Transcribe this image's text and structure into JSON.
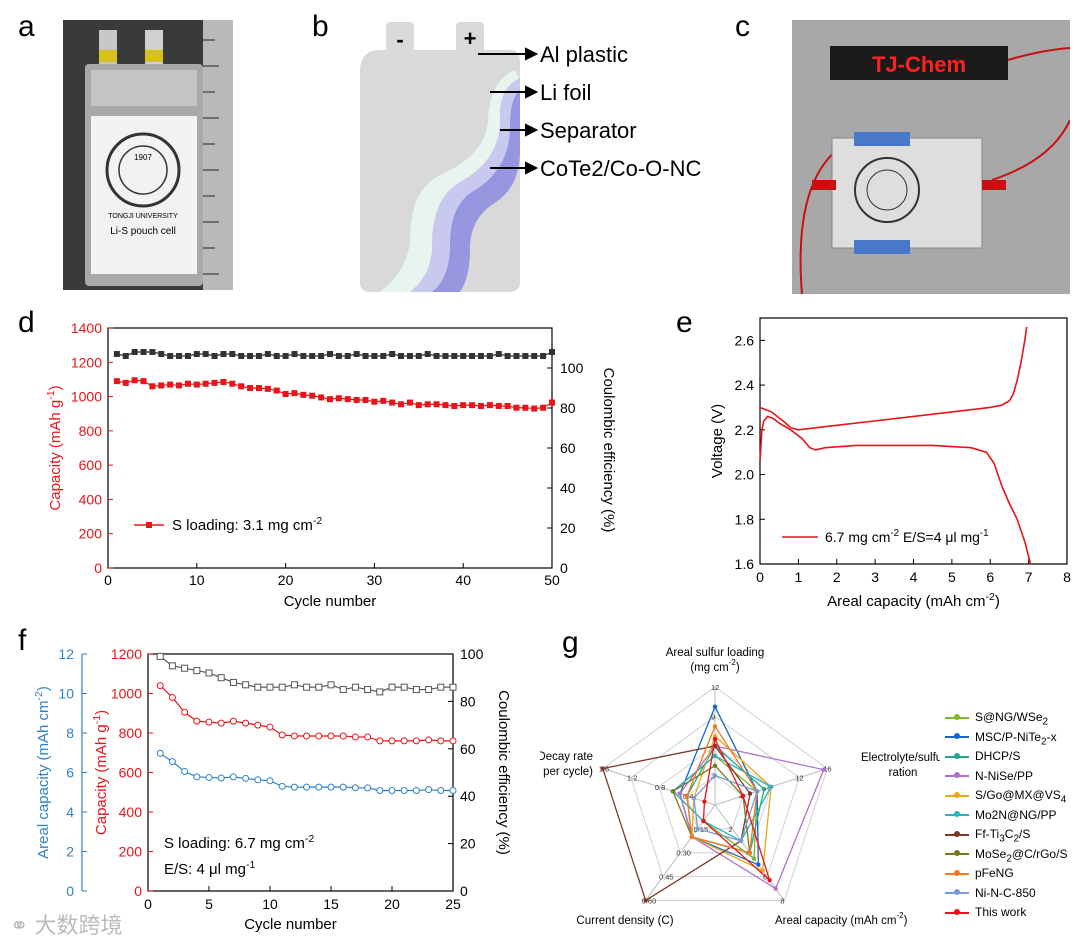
{
  "labels": {
    "a": "a",
    "b": "b",
    "c": "c",
    "d": "d",
    "e": "e",
    "f": "f",
    "g": "g"
  },
  "photo_a": {
    "seal_year": "1907",
    "seal_name": "TONGJI UNIVERSITY",
    "cell_label": "Li-S pouch cell"
  },
  "photo_c": {
    "led_text": "TJ-Chem"
  },
  "schematic_b": {
    "minus": "-",
    "plus": "+",
    "labels": [
      "Al plastic",
      "Li foil",
      "Separator",
      "CoTe2/Co-O-NC"
    ],
    "colors": {
      "body": "#d9d9d9",
      "li_foil": "#e8f4ee",
      "separator": "#c9c9f0",
      "cathode": "#8f8fe0"
    }
  },
  "watermark": "大数跨境",
  "chart_data": [
    {
      "id": "d",
      "type": "scatter",
      "xlabel": "Cycle number",
      "ylabel": "Capacity (mAh g-1)",
      "y2label": "Coulombic efficiency (%)",
      "xlim": [
        0,
        50
      ],
      "ylim": [
        0,
        1400
      ],
      "y2lim": [
        0,
        120
      ],
      "xticks": [
        0,
        10,
        20,
        30,
        40,
        50
      ],
      "yticks": [
        0,
        200,
        400,
        600,
        800,
        1000,
        1200,
        1400
      ],
      "y2ticks": [
        0,
        20,
        40,
        60,
        80,
        100
      ],
      "legend": "S loading: 3.1 mg cm-2",
      "series": [
        {
          "name": "Capacity",
          "axis": "left",
          "color": "#e8141a",
          "x": [
            1,
            2,
            3,
            4,
            5,
            6,
            7,
            8,
            9,
            10,
            11,
            12,
            13,
            14,
            15,
            16,
            17,
            18,
            19,
            20,
            21,
            22,
            23,
            24,
            25,
            26,
            27,
            28,
            29,
            30,
            31,
            32,
            33,
            34,
            35,
            36,
            37,
            38,
            39,
            40,
            41,
            42,
            43,
            44,
            45,
            46,
            47,
            48,
            49,
            50
          ],
          "values": [
            1090,
            1080,
            1095,
            1090,
            1060,
            1065,
            1070,
            1065,
            1075,
            1070,
            1075,
            1080,
            1085,
            1075,
            1060,
            1050,
            1050,
            1045,
            1035,
            1015,
            1020,
            1010,
            1005,
            995,
            985,
            990,
            985,
            980,
            980,
            970,
            975,
            965,
            955,
            965,
            950,
            955,
            955,
            950,
            945,
            950,
            950,
            945,
            950,
            945,
            945,
            935,
            935,
            930,
            935,
            965
          ]
        },
        {
          "name": "Coulombic efficiency",
          "axis": "right",
          "color": "#333333",
          "x": [
            1,
            2,
            3,
            4,
            5,
            6,
            7,
            8,
            9,
            10,
            11,
            12,
            13,
            14,
            15,
            16,
            17,
            18,
            19,
            20,
            21,
            22,
            23,
            24,
            25,
            26,
            27,
            28,
            29,
            30,
            31,
            32,
            33,
            34,
            35,
            36,
            37,
            38,
            39,
            40,
            41,
            42,
            43,
            44,
            45,
            46,
            47,
            48,
            49,
            50
          ],
          "values": [
            107,
            106,
            108,
            108,
            108,
            107,
            106,
            106,
            106,
            107,
            107,
            106,
            107,
            107,
            106,
            106,
            106,
            107,
            106,
            106,
            107,
            106,
            106,
            106,
            107,
            106,
            106,
            107,
            106,
            106,
            106,
            107,
            106,
            106,
            106,
            107,
            106,
            106,
            106,
            106,
            106,
            106,
            106,
            107,
            106,
            106,
            106,
            106,
            106,
            108
          ]
        }
      ]
    },
    {
      "id": "e",
      "type": "line",
      "xlabel": "Areal capacity (mAh cm-2)",
      "ylabel": "Voltage (V)",
      "xlim": [
        0,
        8
      ],
      "ylim": [
        1.6,
        2.7
      ],
      "xticks": [
        0,
        1,
        2,
        3,
        4,
        5,
        6,
        7,
        8
      ],
      "yticks": [
        1.6,
        1.8,
        2.0,
        2.2,
        2.4,
        2.6
      ],
      "legend": "6.7 mg cm-2  E/S=4 μl mg-1",
      "series": [
        {
          "name": "Discharge",
          "color": "#e8141a",
          "x": [
            0,
            0.05,
            0.1,
            0.2,
            0.35,
            0.5,
            0.8,
            1.1,
            1.3,
            1.45,
            1.7,
            2.5,
            3.5,
            4.5,
            5.5,
            5.9,
            6.1,
            6.3,
            6.5,
            6.7,
            6.9,
            7.05
          ],
          "values": [
            2.06,
            2.2,
            2.24,
            2.26,
            2.25,
            2.23,
            2.2,
            2.16,
            2.12,
            2.11,
            2.12,
            2.13,
            2.13,
            2.13,
            2.12,
            2.1,
            2.05,
            1.95,
            1.87,
            1.8,
            1.7,
            1.6
          ]
        },
        {
          "name": "Charge",
          "color": "#e8141a",
          "x": [
            0,
            0.3,
            0.6,
            0.8,
            1.0,
            2.0,
            3.0,
            4.0,
            5.0,
            6.0,
            6.3,
            6.5,
            6.6,
            6.7,
            6.8,
            6.9,
            6.95
          ],
          "values": [
            2.3,
            2.28,
            2.24,
            2.21,
            2.2,
            2.22,
            2.24,
            2.26,
            2.28,
            2.3,
            2.31,
            2.33,
            2.36,
            2.42,
            2.5,
            2.6,
            2.66
          ]
        }
      ]
    },
    {
      "id": "f",
      "type": "line",
      "xlabel": "Cycle number",
      "ylabel": "Capacity (mAh g-1)",
      "y2label": "Coulombic efficiency (%)",
      "y3label": "Areal capacity (mAh cm-2)",
      "xlim": [
        0,
        25
      ],
      "ylim": [
        0,
        1200
      ],
      "y2lim": [
        0,
        100
      ],
      "y3lim": [
        0,
        12
      ],
      "xticks": [
        0,
        5,
        10,
        15,
        20,
        25
      ],
      "yticks": [
        0,
        200,
        400,
        600,
        800,
        1000,
        1200
      ],
      "y2ticks": [
        0,
        20,
        40,
        60,
        80,
        100
      ],
      "y3ticks": [
        0,
        2,
        4,
        6,
        8,
        10,
        12
      ],
      "annotations": [
        "S loading: 6.7 mg cm-2",
        "E/S: 4 μl mg-1"
      ],
      "series": [
        {
          "name": "Capacity",
          "axis": "left",
          "color": "#e8141a",
          "x": [
            1,
            2,
            3,
            4,
            5,
            6,
            7,
            8,
            9,
            10,
            11,
            12,
            13,
            14,
            15,
            16,
            17,
            18,
            19,
            20,
            21,
            22,
            23,
            24,
            25
          ],
          "values": [
            1040,
            980,
            905,
            860,
            855,
            850,
            860,
            850,
            840,
            830,
            790,
            785,
            785,
            785,
            785,
            785,
            780,
            780,
            760,
            760,
            760,
            760,
            765,
            760,
            760
          ]
        },
        {
          "name": "Coulombic efficiency",
          "axis": "right",
          "color": "#555555",
          "x": [
            1,
            2,
            3,
            4,
            5,
            6,
            7,
            8,
            9,
            10,
            11,
            12,
            13,
            14,
            15,
            16,
            17,
            18,
            19,
            20,
            21,
            22,
            23,
            24,
            25
          ],
          "values": [
            99,
            95,
            94,
            93,
            92,
            90,
            88,
            87,
            86,
            86,
            86,
            87,
            86,
            86,
            87,
            85,
            86,
            85,
            84,
            86,
            86,
            85,
            85,
            86,
            86
          ]
        },
        {
          "name": "Areal capacity",
          "axis": "third",
          "color": "#2f82c8",
          "x": [
            1,
            2,
            3,
            4,
            5,
            6,
            7,
            8,
            9,
            10,
            11,
            12,
            13,
            14,
            15,
            16,
            17,
            18,
            19,
            20,
            21,
            22,
            23,
            24,
            25
          ],
          "values": [
            6.97,
            6.55,
            6.05,
            5.78,
            5.75,
            5.72,
            5.78,
            5.7,
            5.63,
            5.58,
            5.3,
            5.26,
            5.26,
            5.26,
            5.26,
            5.26,
            5.23,
            5.22,
            5.09,
            5.09,
            5.09,
            5.09,
            5.13,
            5.09,
            5.09
          ]
        }
      ]
    },
    {
      "id": "g",
      "type": "radar",
      "axes": [
        {
          "label": "Areal sulfur loading (mg cm-2)",
          "ticks": [
            "3",
            "6",
            "9",
            "12"
          ],
          "max": 12
        },
        {
          "label": "Electrolyte/sulfur ration",
          "ticks": [
            "4",
            "8",
            "12",
            "16"
          ],
          "max": 16
        },
        {
          "label": "Areal capacity (mAh cm-2)",
          "ticks": [
            "2",
            "4",
            "6",
            "8"
          ],
          "max": 8
        },
        {
          "label": "Current density (C)",
          "ticks": [
            "0.15",
            "0.30",
            "0.45",
            "0.60"
          ],
          "max": 0.6
        },
        {
          "label": "Decay rate (% per cycle)",
          "ticks": [
            "0.4",
            "0.8",
            "1.2",
            "1.6"
          ],
          "max": 1.6
        }
      ],
      "series": [
        {
          "name": "S@NG/WSe2",
          "color": "#7bb82e",
          "values": [
            5,
            6,
            4.5,
            0.1,
            0.6
          ]
        },
        {
          "name": "MSC/P-NiTe2-x",
          "color": "#1a66c8",
          "values": [
            10,
            6,
            5,
            0.2,
            0.5
          ]
        },
        {
          "name": "DHCP/S",
          "color": "#26a68a",
          "values": [
            6,
            7,
            4,
            0.2,
            0.4
          ]
        },
        {
          "name": "N-NiSe/PP",
          "color": "#b072c8",
          "values": [
            6,
            15.5,
            7,
            0.2,
            0.5
          ]
        },
        {
          "name": "S/Go@MX@VS4",
          "color": "#e8a81a",
          "values": [
            7,
            8,
            5.5,
            0.2,
            0.3
          ]
        },
        {
          "name": "Mo2N@NG/PP",
          "color": "#2ab0c0",
          "values": [
            5,
            8,
            3,
            0.1,
            0.6
          ]
        },
        {
          "name": "Ff-Ti3C2/S",
          "color": "#7a3a2a",
          "values": [
            6,
            5,
            3,
            0.6,
            1.6
          ]
        },
        {
          "name": "MoSe2@C/rGo/S",
          "color": "#7a7a1a",
          "values": [
            4,
            4,
            4,
            0.2,
            0.6
          ]
        },
        {
          "name": "pFeNG",
          "color": "#f07a20",
          "values": [
            8,
            6,
            4,
            0.2,
            0.4
          ]
        },
        {
          "name": "Ni-N-C-850",
          "color": "#7a9ad8",
          "values": [
            3,
            6,
            3,
            0.15,
            0.3
          ]
        },
        {
          "name": "This work",
          "color": "#e8141a",
          "values": [
            6.7,
            4,
            6.3,
            0.1,
            0.15
          ]
        }
      ]
    }
  ]
}
